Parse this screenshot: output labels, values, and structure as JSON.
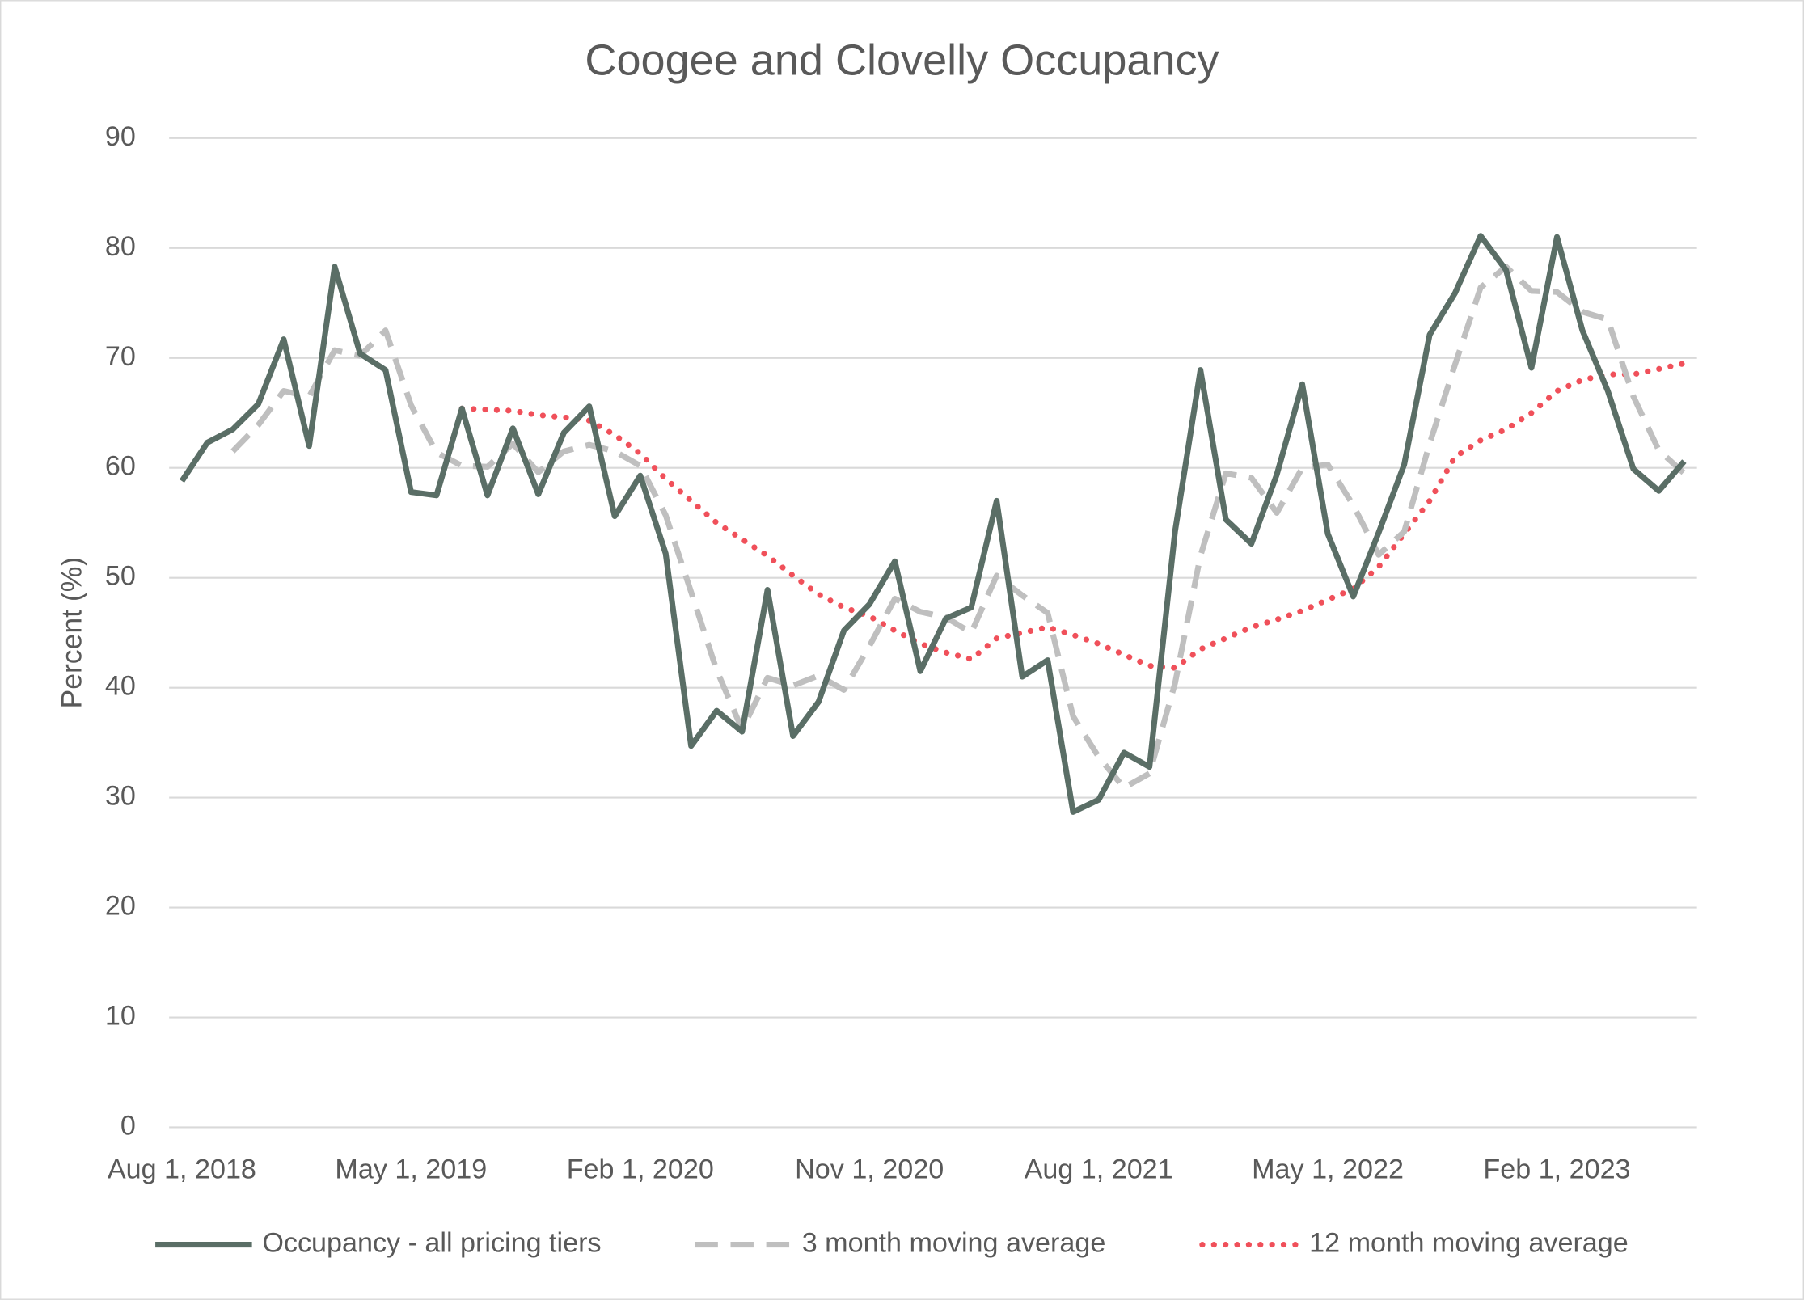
{
  "chart_data": {
    "type": "line",
    "title": "Coogee and Clovelly Occupancy",
    "y_label": "Percent (%)",
    "categories": [
      "Aug 1, 2018",
      null,
      null,
      null,
      null,
      null,
      null,
      null,
      null,
      "May 1, 2019",
      null,
      null,
      null,
      null,
      null,
      null,
      null,
      null,
      "Feb 1, 2020",
      null,
      null,
      null,
      null,
      null,
      null,
      null,
      null,
      "Nov 1, 2020",
      null,
      null,
      null,
      null,
      null,
      null,
      null,
      null,
      "Aug 1, 2021",
      null,
      null,
      null,
      null,
      null,
      null,
      null,
      null,
      "May 1, 2022",
      null,
      null,
      null,
      null,
      null,
      null,
      null,
      null,
      "Feb 1, 2023",
      null,
      null,
      null,
      null,
      null
    ],
    "series": [
      {
        "name": "Occupancy - all pricing tiers",
        "color": "#5a6e66",
        "style": "solid",
        "values": [
          58.8,
          62.3,
          63.5,
          65.8,
          71.7,
          62,
          78.3,
          70.4,
          68.9,
          57.8,
          57.5,
          65.4,
          57.5,
          63.6,
          57.6,
          63.2,
          65.6,
          55.6,
          59.3,
          52.2,
          34.7,
          37.9,
          36,
          48.9,
          35.6,
          38.7,
          45.2,
          47.6,
          51.5,
          41.5,
          46.3,
          47.3,
          57,
          41,
          42.5,
          28.7,
          29.8,
          34.1,
          32.8,
          54.2,
          68.9,
          55.3,
          53.1,
          59.4,
          67.6,
          54,
          48.3,
          54.1,
          60.3,
          72.1,
          75.9,
          81.1,
          78,
          69.1,
          81,
          72.5,
          67,
          59.9,
          57.9,
          60.6
        ]
      },
      {
        "name": "3 month moving average",
        "color": "#bfbfbf",
        "style": "dashed",
        "values": [
          null,
          null,
          61.5,
          63.9,
          67.0,
          66.5,
          70.7,
          70.2,
          72.5,
          65.7,
          61.4,
          60.2,
          60.1,
          62.2,
          59.6,
          61.5,
          62.1,
          61.5,
          60.2,
          55.7,
          48.7,
          41.6,
          36.2,
          40.9,
          40.2,
          41.1,
          39.8,
          43.8,
          48.1,
          46.9,
          46.4,
          45.0,
          50.2,
          48.4,
          46.8,
          37.4,
          33.7,
          30.9,
          32.2,
          40.4,
          52.0,
          59.5,
          59.1,
          55.9,
          60.0,
          60.3,
          56.6,
          52.1,
          54.2,
          62.2,
          69.4,
          76.4,
          78.3,
          76.1,
          76.0,
          74.2,
          73.5,
          66.5,
          61.6,
          59.5
        ]
      },
      {
        "name": "12 month moving average",
        "color": "#f0505a",
        "style": "dotted",
        "values": [
          null,
          null,
          null,
          null,
          null,
          null,
          null,
          null,
          null,
          null,
          null,
          65.4,
          65.3,
          65.2,
          64.8,
          64.6,
          64.3,
          63.0,
          61.3,
          59.0,
          57.0,
          55.0,
          53.5,
          52.0,
          50.2,
          48.5,
          47.3,
          46.5,
          45.2,
          44.0,
          43.2,
          42.6,
          44.5,
          45.0,
          45.5,
          44.8,
          44.0,
          43.0,
          42.0,
          41.8,
          43.5,
          44.5,
          45.5,
          46.2,
          47.0,
          48.0,
          49.0,
          51.0,
          54.0,
          57.0,
          61.0,
          62.5,
          63.5,
          65.0,
          67.0,
          68.0,
          68.5,
          68.5,
          69.0,
          69.5
        ]
      }
    ],
    "ylim": [
      0,
      90
    ],
    "yticks": [
      0,
      10,
      20,
      30,
      40,
      50,
      60,
      70,
      80,
      90
    ],
    "grid": true,
    "legend": "bottom"
  }
}
